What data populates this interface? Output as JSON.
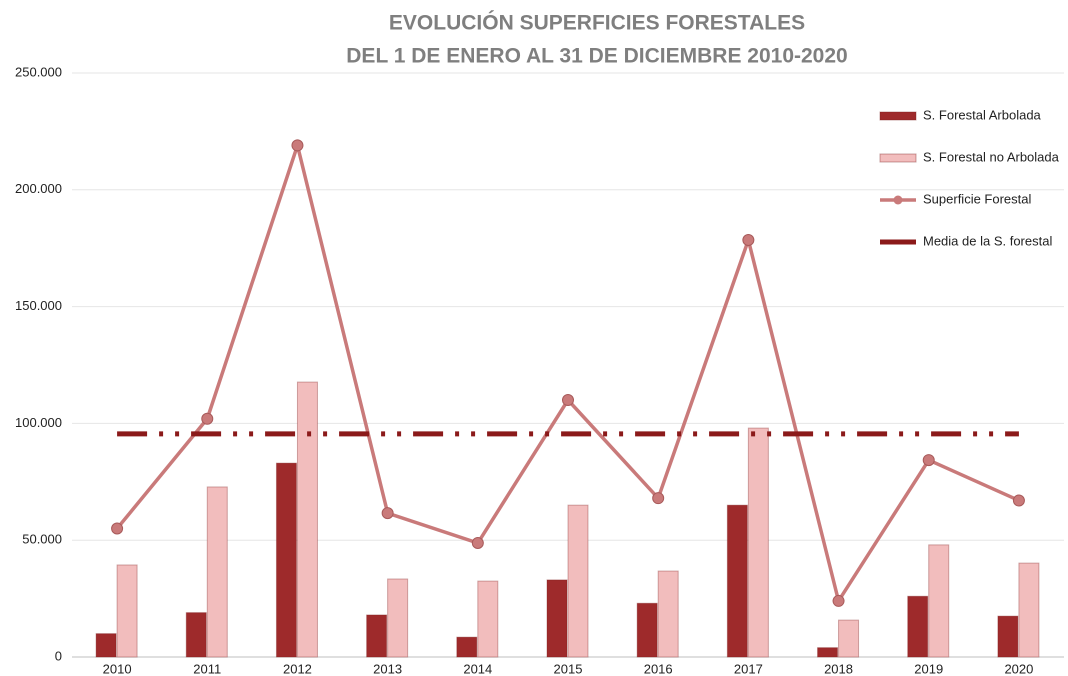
{
  "chart_data": {
    "type": "bar",
    "title": [
      "EVOLUCIÓN SUPERFICIES FORESTALES",
      "DEL 1 DE ENERO AL 31 DE DICIEMBRE 2010-2020"
    ],
    "categories": [
      "2010",
      "2011",
      "2012",
      "2013",
      "2014",
      "2015",
      "2016",
      "2017",
      "2018",
      "2019",
      "2020"
    ],
    "series": [
      {
        "name": "S. Forestal Arbolada",
        "type": "bar",
        "color": "#9e2a2b",
        "values": [
          10000,
          19000,
          83000,
          18000,
          8500,
          33000,
          23000,
          65000,
          4000,
          26000,
          17500
        ]
      },
      {
        "name": "S. Forestal no Arbolada",
        "type": "bar",
        "color": "#f2bdbd",
        "values": [
          39400,
          72800,
          117700,
          33400,
          32500,
          65000,
          36800,
          98000,
          15800,
          48000,
          40200
        ]
      },
      {
        "name": "Superficie Forestal",
        "type": "line",
        "color": "#c97a7a",
        "marker": true,
        "values": [
          55000,
          102000,
          219000,
          61600,
          48800,
          110000,
          68000,
          178500,
          24000,
          84300,
          67000
        ]
      },
      {
        "name": "Media de la S. forestal",
        "type": "line",
        "color": "#8b1a1a",
        "dashed": true,
        "values": [
          95500,
          95500,
          95500,
          95500,
          95500,
          95500,
          95500,
          95500,
          95500,
          95500,
          95500
        ]
      }
    ],
    "ylim": [
      0,
      250000
    ],
    "yticks": [
      0,
      {
        "value": 50000,
        "label": "50.000"
      },
      {
        "value": 100000,
        "label": "100.000"
      },
      {
        "value": 150000,
        "label": "150.000"
      },
      {
        "value": 200000,
        "label": "200.000"
      },
      {
        "value": 250000,
        "label": "250.000"
      }
    ],
    "grid": true,
    "legend": "right"
  }
}
